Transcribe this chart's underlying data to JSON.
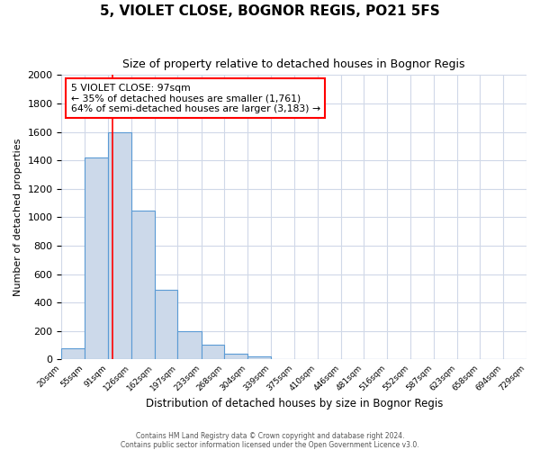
{
  "title": "5, VIOLET CLOSE, BOGNOR REGIS, PO21 5FS",
  "subtitle": "Size of property relative to detached houses in Bognor Regis",
  "xlabel": "Distribution of detached houses by size in Bognor Regis",
  "ylabel": "Number of detached properties",
  "bar_edges": [
    20,
    55,
    91,
    126,
    162,
    197,
    233,
    268,
    304,
    339,
    375,
    410,
    446,
    481,
    516,
    552,
    587,
    623,
    658,
    694,
    729
  ],
  "bar_heights": [
    80,
    1420,
    1600,
    1050,
    490,
    200,
    105,
    40,
    25,
    0,
    0,
    0,
    0,
    0,
    0,
    0,
    0,
    0,
    0,
    0
  ],
  "bar_color": "#ccd9ea",
  "bar_edge_color": "#5b9bd5",
  "bar_linewidth": 0.8,
  "vline_x": 97,
  "vline_color": "red",
  "vline_linewidth": 1.2,
  "annotation_title": "5 VIOLET CLOSE: 97sqm",
  "annotation_line1": "← 35% of detached houses are smaller (1,761)",
  "annotation_line2": "64% of semi-detached houses are larger (3,183) →",
  "annotation_box_color": "white",
  "annotation_box_edge_color": "red",
  "ylim": [
    0,
    2000
  ],
  "xlim": [
    20,
    729
  ],
  "ytick_interval": 200,
  "tick_labels": [
    "20sqm",
    "55sqm",
    "91sqm",
    "126sqm",
    "162sqm",
    "197sqm",
    "233sqm",
    "268sqm",
    "304sqm",
    "339sqm",
    "375sqm",
    "410sqm",
    "446sqm",
    "481sqm",
    "516sqm",
    "552sqm",
    "587sqm",
    "623sqm",
    "658sqm",
    "694sqm",
    "729sqm"
  ],
  "footer_line1": "Contains HM Land Registry data © Crown copyright and database right 2024.",
  "footer_line2": "Contains public sector information licensed under the Open Government Licence v3.0.",
  "fig_background": "#ffffff",
  "plot_background": "#ffffff",
  "grid_color": "#d0d8e8"
}
